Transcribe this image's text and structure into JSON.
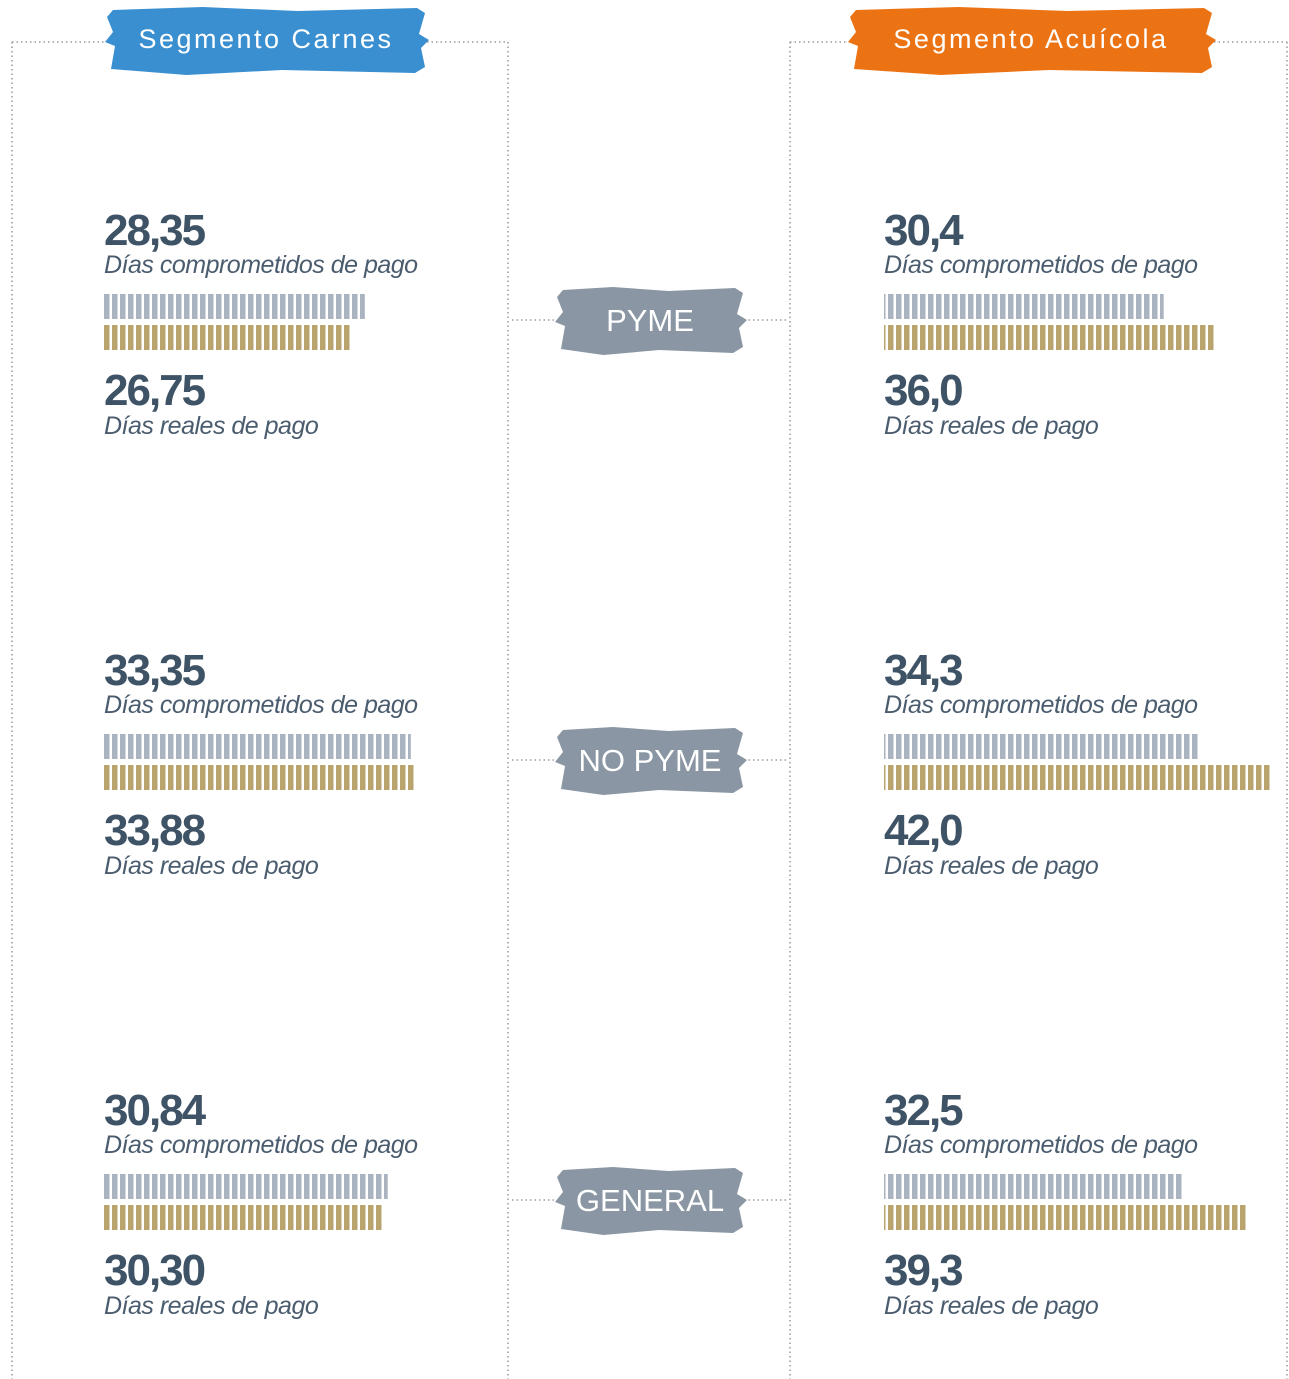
{
  "segments": [
    {
      "title": "Segmento Carnes",
      "color": "#3a8fd1",
      "groups": [
        {
          "committed": 28.35,
          "committed_label": "28,35",
          "actual": 26.75,
          "actual_label": "26,75"
        },
        {
          "committed": 33.35,
          "committed_label": "33,35",
          "actual": 33.88,
          "actual_label": "33,88"
        },
        {
          "committed": 30.84,
          "committed_label": "30,84",
          "actual": 30.3,
          "actual_label": "30,30"
        }
      ]
    },
    {
      "title": "Segmento Acuícola",
      "color": "#ec7314",
      "groups": [
        {
          "committed": 30.4,
          "committed_label": "30,4",
          "actual": 36.0,
          "actual_label": "36,0"
        },
        {
          "committed": 34.3,
          "committed_label": "34,3",
          "actual": 42.0,
          "actual_label": "42,0"
        },
        {
          "committed": 32.5,
          "committed_label": "32,5",
          "actual": 39.3,
          "actual_label": "39,3"
        }
      ]
    }
  ],
  "groups": [
    "PYME",
    "NO PYME",
    "GENERAL"
  ],
  "committed_text": "Días comprometidos de pago",
  "actual_text": "Días reales de pago",
  "committed_color": "#aab3c0",
  "actual_color": "#b9a46e",
  "group_color": "#8a96a3"
}
